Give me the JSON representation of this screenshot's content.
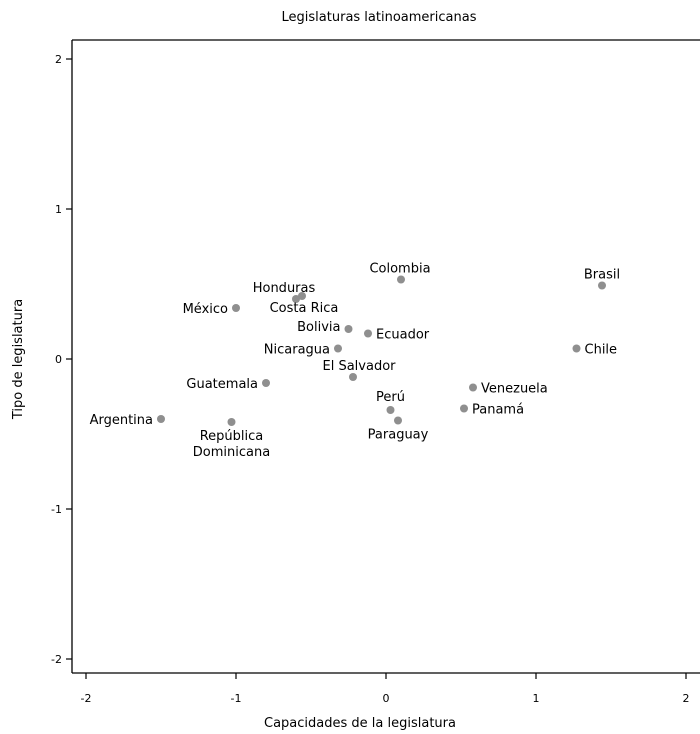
{
  "chart_data": {
    "type": "scatter",
    "title": "Legislaturas latinoamericanas",
    "xlabel": "Capacidades de la legislatura",
    "ylabel": "Tipo de legislatura",
    "xlim": [
      -2.1,
      2.05
    ],
    "ylim": [
      -2.1,
      2.1
    ],
    "xticks": [
      -2,
      -1,
      0,
      1,
      2
    ],
    "yticks": [
      -2,
      -1,
      0,
      1,
      2
    ],
    "xtick_labels": [
      "-2",
      "-1",
      "0",
      "1",
      "2"
    ],
    "ytick_labels": [
      "-2",
      "-1",
      "0",
      "1",
      "2"
    ],
    "grid": false,
    "point_color": "#8f8f8f",
    "points": [
      {
        "label": "Argentina",
        "x": -1.5,
        "y": -0.4
      },
      {
        "label": "República\nDominicana",
        "x": -1.03,
        "y": -0.42
      },
      {
        "label": "México",
        "x": -1.0,
        "y": 0.34
      },
      {
        "label": "Guatemala",
        "x": -0.8,
        "y": -0.16
      },
      {
        "label": "Honduras",
        "x": -0.6,
        "y": 0.4
      },
      {
        "label": "Costa Rica",
        "x": -0.56,
        "y": 0.42
      },
      {
        "label": "Bolivia",
        "x": -0.25,
        "y": 0.2
      },
      {
        "label": "Nicaragua",
        "x": -0.32,
        "y": 0.07
      },
      {
        "label": "El Salvador",
        "x": -0.22,
        "y": -0.12
      },
      {
        "label": "Ecuador",
        "x": -0.12,
        "y": 0.17
      },
      {
        "label": "Colombia",
        "x": 0.1,
        "y": 0.53
      },
      {
        "label": "Perú",
        "x": 0.03,
        "y": -0.34
      },
      {
        "label": "Paraguay",
        "x": 0.08,
        "y": -0.41
      },
      {
        "label": "Panamá",
        "x": 0.52,
        "y": -0.33
      },
      {
        "label": "Venezuela",
        "x": 0.58,
        "y": -0.19
      },
      {
        "label": "Chile",
        "x": 1.27,
        "y": 0.07
      },
      {
        "label": "Brasil",
        "x": 1.44,
        "y": 0.49
      }
    ]
  }
}
